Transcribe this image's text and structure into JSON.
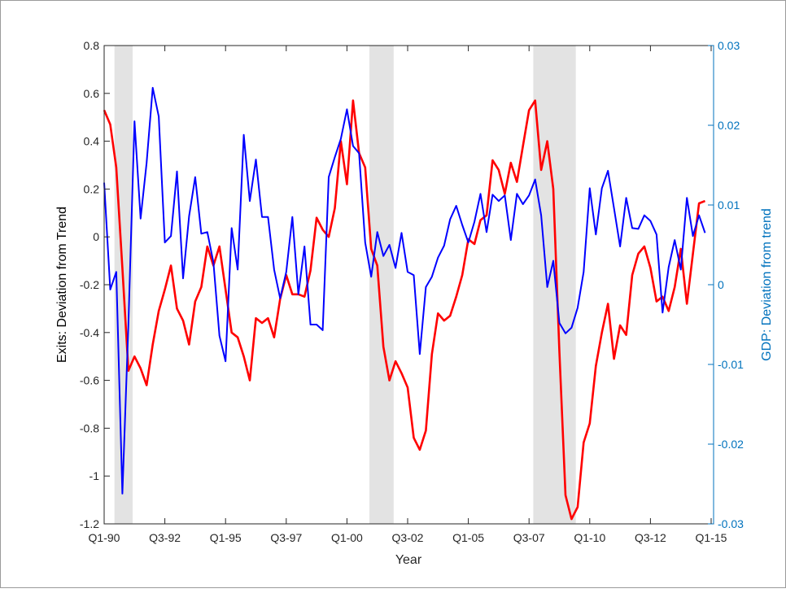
{
  "chart_data": {
    "type": "line",
    "xlabel": "Year",
    "ylabel_left": "Exits: Deviation from Trend",
    "ylabel_right": "GDP: Deviation from trend",
    "ylim_left": [
      -1.2,
      0.8
    ],
    "ylim_right": [
      -0.03,
      0.03
    ],
    "yticks_left": [
      "0.8",
      "0.6",
      "0.4",
      "0.2",
      "0",
      "-0.2",
      "-0.4",
      "-0.6",
      "-0.8",
      "-1",
      "-1.2"
    ],
    "yticks_right": [
      "0.03",
      "0.02",
      "0.01",
      "0",
      "-0.01",
      "-0.02",
      "-0.03"
    ],
    "xticks": [
      "Q1-90",
      "Q3-92",
      "Q1-95",
      "Q3-97",
      "Q1-00",
      "Q3-02",
      "Q1-05",
      "Q3-07",
      "Q1-10",
      "Q3-12",
      "Q1-15"
    ],
    "grid": false,
    "colors": {
      "exits": "#ff0000",
      "gdp": "#0000ff",
      "right_axis": "#0072bd",
      "recession": "#e3e3e3"
    },
    "recessions": [
      {
        "start": "Q3-90",
        "end": "Q1-91"
      },
      {
        "start": "Q1-01",
        "end": "Q4-01"
      },
      {
        "start": "Q4-07",
        "end": "Q2-09"
      }
    ],
    "x": [
      "Q1-90",
      "Q2-90",
      "Q3-90",
      "Q4-90",
      "Q1-91",
      "Q2-91",
      "Q3-91",
      "Q4-91",
      "Q1-92",
      "Q2-92",
      "Q3-92",
      "Q4-92",
      "Q1-93",
      "Q2-93",
      "Q3-93",
      "Q4-93",
      "Q1-94",
      "Q2-94",
      "Q3-94",
      "Q4-94",
      "Q1-95",
      "Q2-95",
      "Q3-95",
      "Q4-95",
      "Q1-96",
      "Q2-96",
      "Q3-96",
      "Q4-96",
      "Q1-97",
      "Q2-97",
      "Q3-97",
      "Q4-97",
      "Q1-98",
      "Q2-98",
      "Q3-98",
      "Q4-98",
      "Q1-99",
      "Q2-99",
      "Q3-99",
      "Q4-99",
      "Q1-00",
      "Q2-00",
      "Q3-00",
      "Q4-00",
      "Q1-01",
      "Q2-01",
      "Q3-01",
      "Q4-01",
      "Q1-02",
      "Q2-02",
      "Q3-02",
      "Q4-02",
      "Q1-03",
      "Q2-03",
      "Q3-03",
      "Q4-03",
      "Q1-04",
      "Q2-04",
      "Q3-04",
      "Q4-04",
      "Q1-05",
      "Q2-05",
      "Q3-05",
      "Q4-05",
      "Q1-06",
      "Q2-06",
      "Q3-06",
      "Q4-06",
      "Q1-07",
      "Q2-07",
      "Q3-07",
      "Q4-07",
      "Q1-08",
      "Q2-08",
      "Q3-08",
      "Q4-08",
      "Q1-09",
      "Q2-09",
      "Q3-09",
      "Q4-09",
      "Q1-10",
      "Q2-10",
      "Q3-10",
      "Q4-10",
      "Q1-11",
      "Q2-11",
      "Q3-11",
      "Q4-11",
      "Q1-12",
      "Q2-12",
      "Q3-12",
      "Q4-12",
      "Q1-13",
      "Q2-13",
      "Q3-13",
      "Q4-13",
      "Q1-14",
      "Q2-14",
      "Q3-14",
      "Q4-14"
    ],
    "series": [
      {
        "axis": "left",
        "color": "#ff0000",
        "values": [
          0.53,
          0.47,
          0.29,
          -0.13,
          -0.56,
          -0.5,
          -0.55,
          -0.62,
          -0.45,
          -0.31,
          -0.22,
          -0.12,
          -0.3,
          -0.35,
          -0.45,
          -0.27,
          -0.21,
          -0.04,
          -0.12,
          -0.04,
          -0.22,
          -0.4,
          -0.42,
          -0.5,
          -0.6,
          -0.34,
          -0.36,
          -0.34,
          -0.42,
          -0.26,
          -0.16,
          -0.24,
          -0.24,
          -0.25,
          -0.14,
          0.08,
          0.03,
          0.0,
          0.12,
          0.4,
          0.22,
          0.57,
          0.35,
          0.29,
          -0.05,
          -0.12,
          -0.46,
          -0.6,
          -0.52,
          -0.57,
          -0.63,
          -0.84,
          -0.89,
          -0.81,
          -0.49,
          -0.32,
          -0.35,
          -0.33,
          -0.25,
          -0.16,
          -0.01,
          -0.03,
          0.07,
          0.09,
          0.32,
          0.28,
          0.18,
          0.31,
          0.23,
          0.38,
          0.53,
          0.57,
          0.28,
          0.4,
          0.2,
          -0.48,
          -1.08,
          -1.18,
          -1.13,
          -0.86,
          -0.78,
          -0.54,
          -0.4,
          -0.28,
          -0.51,
          -0.37,
          -0.41,
          -0.16,
          -0.07,
          -0.04,
          -0.13,
          -0.27,
          -0.25,
          -0.31,
          -0.21,
          -0.05,
          -0.28,
          -0.07,
          0.14,
          0.15
        ]
      },
      {
        "axis": "right",
        "color": "#0000ff",
        "values": [
          0.0128,
          -0.0006,
          0.0016,
          -0.0262,
          -0.005,
          0.0205,
          0.0083,
          0.0153,
          0.0247,
          0.0211,
          0.0053,
          0.0061,
          0.0142,
          0.0008,
          0.0086,
          0.0135,
          0.0064,
          0.0066,
          0.0028,
          -0.0064,
          -0.0096,
          0.0071,
          0.0019,
          0.0188,
          0.0105,
          0.0157,
          0.0085,
          0.0085,
          0.0019,
          -0.0017,
          0.0016,
          0.0085,
          -0.0012,
          0.0048,
          -0.005,
          -0.005,
          -0.0057,
          0.0135,
          0.016,
          0.0183,
          0.022,
          0.0174,
          0.0165,
          0.0053,
          0.001,
          0.0066,
          0.0036,
          0.005,
          0.0021,
          0.0065,
          0.0016,
          0.0012,
          -0.0087,
          -0.0003,
          0.001,
          0.0034,
          0.0049,
          0.0082,
          0.0099,
          0.0075,
          0.0053,
          0.0079,
          0.0114,
          0.0066,
          0.0113,
          0.0105,
          0.0112,
          0.0056,
          0.0114,
          0.0101,
          0.0112,
          0.0132,
          0.0087,
          -0.0003,
          0.003,
          -0.0048,
          -0.0061,
          -0.0054,
          -0.0029,
          0.0016,
          0.0121,
          0.0063,
          0.0121,
          0.0143,
          0.0096,
          0.0048,
          0.0109,
          0.0071,
          0.007,
          0.0087,
          0.008,
          0.0063,
          -0.0035,
          0.0022,
          0.0056,
          0.0019,
          0.0109,
          0.0061,
          0.0087,
          0.0065
        ]
      }
    ]
  }
}
